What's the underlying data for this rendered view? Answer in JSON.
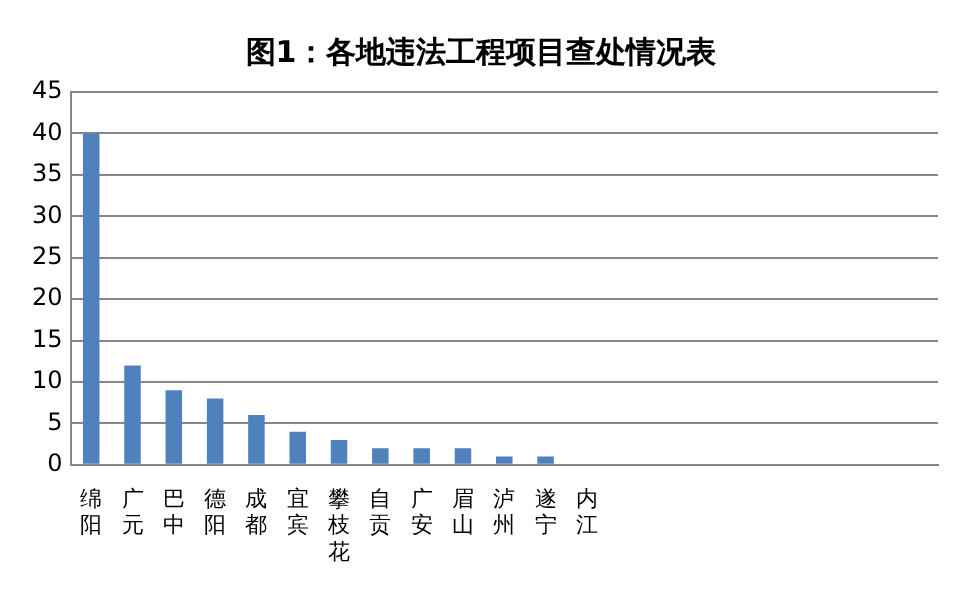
{
  "chart_data": {
    "type": "bar",
    "title": "图1：各地违法工程项目查处情况表",
    "categories": [
      "绵阳",
      "广元",
      "巴中",
      "德阳",
      "成都",
      "宜宾",
      "攀枝花",
      "自贡",
      "广安",
      "眉山",
      "泸州",
      "遂宁",
      "内江",
      null,
      null,
      null,
      null,
      null,
      null,
      null,
      null
    ],
    "values": [
      40,
      12,
      9,
      8,
      6,
      4,
      3,
      2,
      2,
      2,
      1,
      1,
      0,
      0,
      0,
      0,
      0,
      0,
      0,
      0,
      0
    ],
    "color": "#4f81bd",
    "ylim": [
      0,
      45
    ],
    "yticks": [
      0,
      5,
      10,
      15,
      20,
      25,
      30,
      35,
      40,
      45
    ],
    "grid": "y"
  }
}
